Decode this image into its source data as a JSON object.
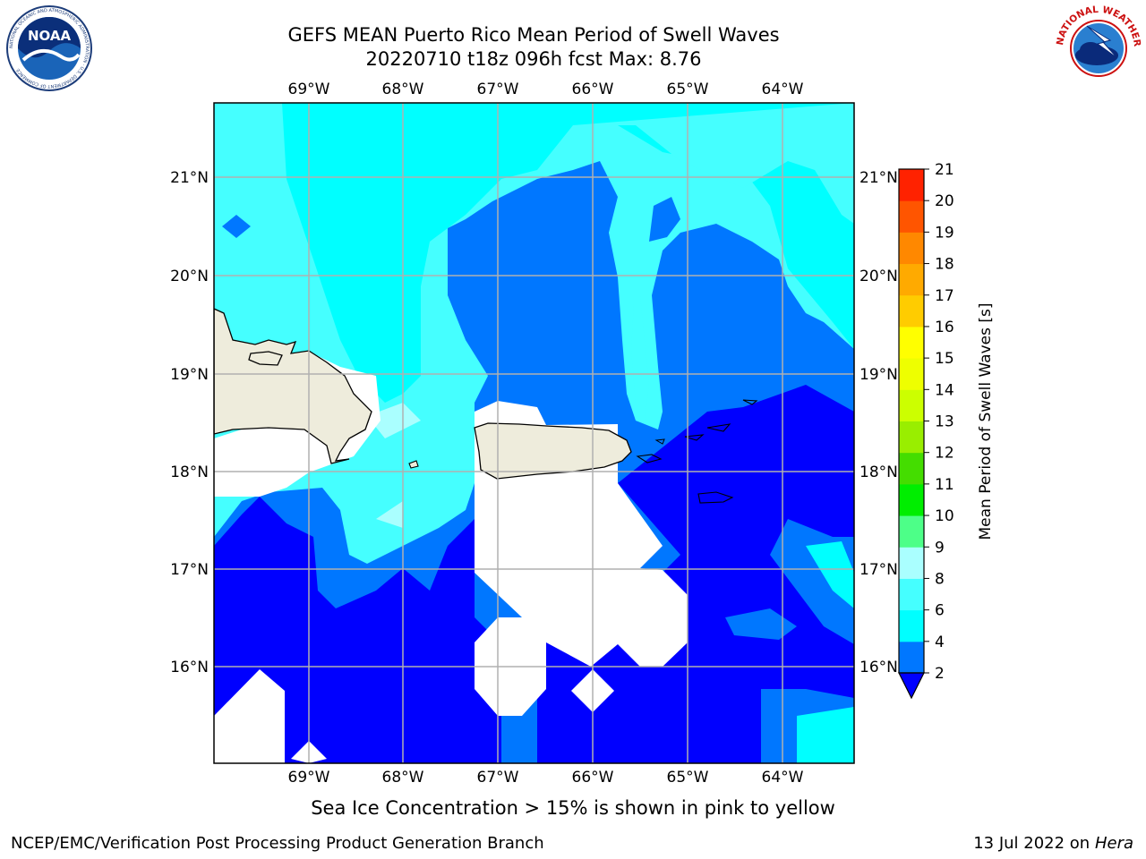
{
  "header": {
    "title_line1": "GEFS MEAN Puerto Rico Mean Period of Swell Waves",
    "title_line2": "20220710 t18z 096h fcst   Max: 8.76"
  },
  "logos": {
    "left": {
      "name": "noaa-logo",
      "text": "NOAA",
      "ring_text": "NATIONAL OCEANIC AND ATMOSPHERIC ADMINISTRATION · U.S. DEPARTMENT OF COMMERCE"
    },
    "right": {
      "name": "nws-logo",
      "ring_text": "NATIONAL WEATHER SERVICE"
    }
  },
  "map": {
    "lon_labels": [
      "69°W",
      "68°W",
      "67°W",
      "66°W",
      "65°W",
      "64°W"
    ],
    "lat_labels": [
      "21°N",
      "20°N",
      "19°N",
      "18°N",
      "17°N",
      "16°N"
    ],
    "colors": {
      "land": "#eeecdc",
      "no_data": "#ffffff",
      "grid": "#b0b0b0"
    }
  },
  "colorbar": {
    "label": "Mean Period of Swell Waves [s]",
    "ticks": [
      "2",
      "4",
      "6",
      "8",
      "9",
      "10",
      "11",
      "12",
      "13",
      "14",
      "15",
      "16",
      "17",
      "18",
      "19",
      "20",
      "21"
    ],
    "colors": [
      "#0000ff",
      "#0077ff",
      "#00ffff",
      "#45ffff",
      "#aaffff",
      "#4dff88",
      "#00ee00",
      "#44dd00",
      "#99ee00",
      "#ccff00",
      "#eeff00",
      "#ffff00",
      "#ffcc00",
      "#ffaa00",
      "#ff8800",
      "#ff5500",
      "#ff2200",
      "#ff0000"
    ]
  },
  "caption": "Sea Ice Concentration > 15% is shown in pink to yellow",
  "footer": {
    "left": "NCEP/EMC/Verification Post Processing Product Generation Branch",
    "right_date": "13 Jul 2022 on ",
    "right_machine": "Hera"
  }
}
